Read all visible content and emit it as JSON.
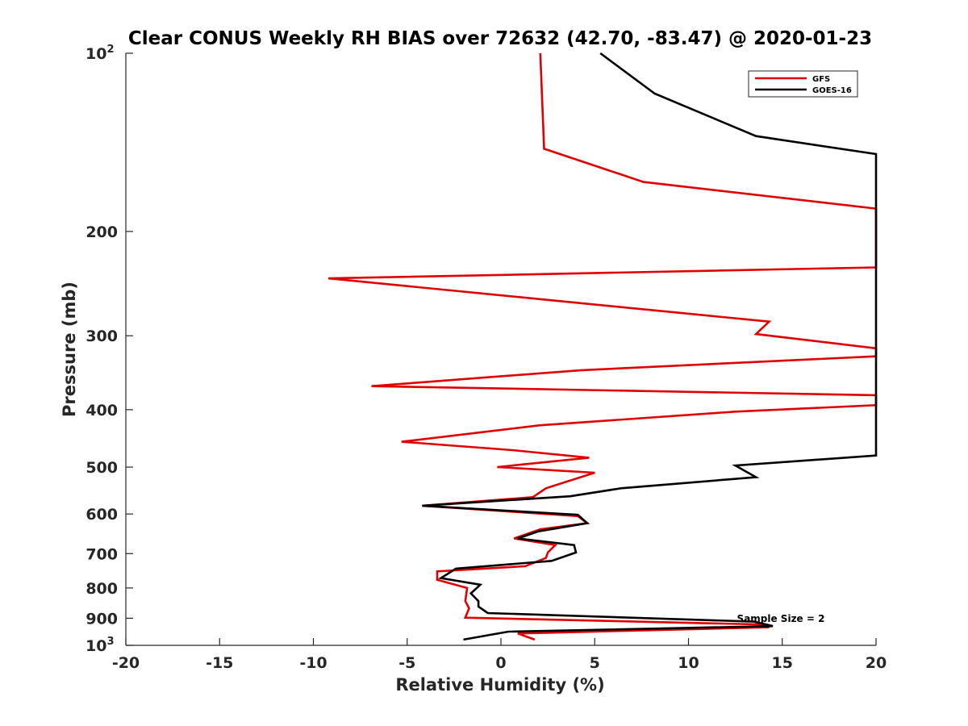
{
  "chart_data": {
    "type": "line",
    "title": "Clear CONUS Weekly RH BIAS over 72632 (42.70, -83.47) @ 2020-01-23",
    "xlabel": "Relative Humidity (%)",
    "ylabel": "Pressure (mb)",
    "xlim": [
      -20,
      20
    ],
    "ylim": [
      100,
      1000
    ],
    "y_scale": "log",
    "y_reversed": true,
    "grid": false,
    "legend_position": "top-right",
    "x_ticks": [
      -20,
      -15,
      -10,
      -5,
      0,
      5,
      10,
      15,
      20
    ],
    "x_tick_labels": [
      "-20",
      "-15",
      "-10",
      "-5",
      "0",
      "5",
      "10",
      "15",
      "20"
    ],
    "y_ticks": [
      {
        "value": 100,
        "base": "10",
        "exp": "2"
      },
      {
        "value": 200,
        "base": "200",
        "exp": ""
      },
      {
        "value": 300,
        "base": "300",
        "exp": ""
      },
      {
        "value": 400,
        "base": "400",
        "exp": ""
      },
      {
        "value": 500,
        "base": "500",
        "exp": ""
      },
      {
        "value": 600,
        "base": "600",
        "exp": ""
      },
      {
        "value": 700,
        "base": "700",
        "exp": ""
      },
      {
        "value": 800,
        "base": "800",
        "exp": ""
      },
      {
        "value": 900,
        "base": "900",
        "exp": ""
      },
      {
        "value": 1000,
        "base": "10",
        "exp": "3"
      }
    ],
    "annotation": "Sample Size = 2",
    "series": [
      {
        "name": "GFS",
        "color": "#e00000",
        "points": [
          [
            2.1,
            100
          ],
          [
            2.2,
            120
          ],
          [
            2.3,
            145
          ],
          [
            7.6,
            165
          ],
          [
            20,
            183
          ],
          [
            20,
            230
          ],
          [
            -9.2,
            240
          ],
          [
            14.3,
            284
          ],
          [
            13.6,
            298
          ],
          [
            20,
            315
          ],
          [
            20,
            325
          ],
          [
            4.3,
            343
          ],
          [
            -6.9,
            365
          ],
          [
            20,
            378
          ],
          [
            20,
            393
          ],
          [
            12.5,
            403
          ],
          [
            2.1,
            425
          ],
          [
            -5.3,
            453
          ],
          [
            0.6,
            468
          ],
          [
            4.7,
            482
          ],
          [
            -0.2,
            500
          ],
          [
            5.0,
            511
          ],
          [
            2.4,
            543
          ],
          [
            1.7,
            562
          ],
          [
            -4.2,
            581
          ],
          [
            4.1,
            605
          ],
          [
            4.6,
            622
          ],
          [
            2.1,
            637
          ],
          [
            0.7,
            660
          ],
          [
            2.9,
            677
          ],
          [
            2.5,
            697
          ],
          [
            2.4,
            712
          ],
          [
            1.3,
            735
          ],
          [
            -3.4,
            750
          ],
          [
            -3.4,
            775
          ],
          [
            -1.8,
            800
          ],
          [
            -1.9,
            842
          ],
          [
            -1.7,
            866
          ],
          [
            -1.9,
            898
          ],
          [
            13.8,
            922
          ],
          [
            14.3,
            932
          ],
          [
            0.9,
            955
          ],
          [
            1.8,
            978
          ]
        ]
      },
      {
        "name": "GOES-16",
        "color": "#000000",
        "points": [
          [
            5.3,
            100
          ],
          [
            8.2,
            117
          ],
          [
            13.6,
            138
          ],
          [
            20,
            148
          ],
          [
            20,
            478
          ],
          [
            12.5,
            497
          ],
          [
            13.6,
            520
          ],
          [
            6.4,
            543
          ],
          [
            3.7,
            560
          ],
          [
            -4.2,
            581
          ],
          [
            4.1,
            602
          ],
          [
            4.6,
            622
          ],
          [
            2.0,
            642
          ],
          [
            0.9,
            660
          ],
          [
            3.9,
            677
          ],
          [
            4.0,
            697
          ],
          [
            2.7,
            720
          ],
          [
            -2.4,
            742
          ],
          [
            -3.2,
            770
          ],
          [
            -1.1,
            790
          ],
          [
            -1.6,
            817
          ],
          [
            -1.2,
            842
          ],
          [
            -1.2,
            860
          ],
          [
            -0.7,
            882
          ],
          [
            13.5,
            912
          ],
          [
            14.5,
            928
          ],
          [
            0.4,
            948
          ],
          [
            -2.0,
            978
          ]
        ]
      }
    ]
  }
}
